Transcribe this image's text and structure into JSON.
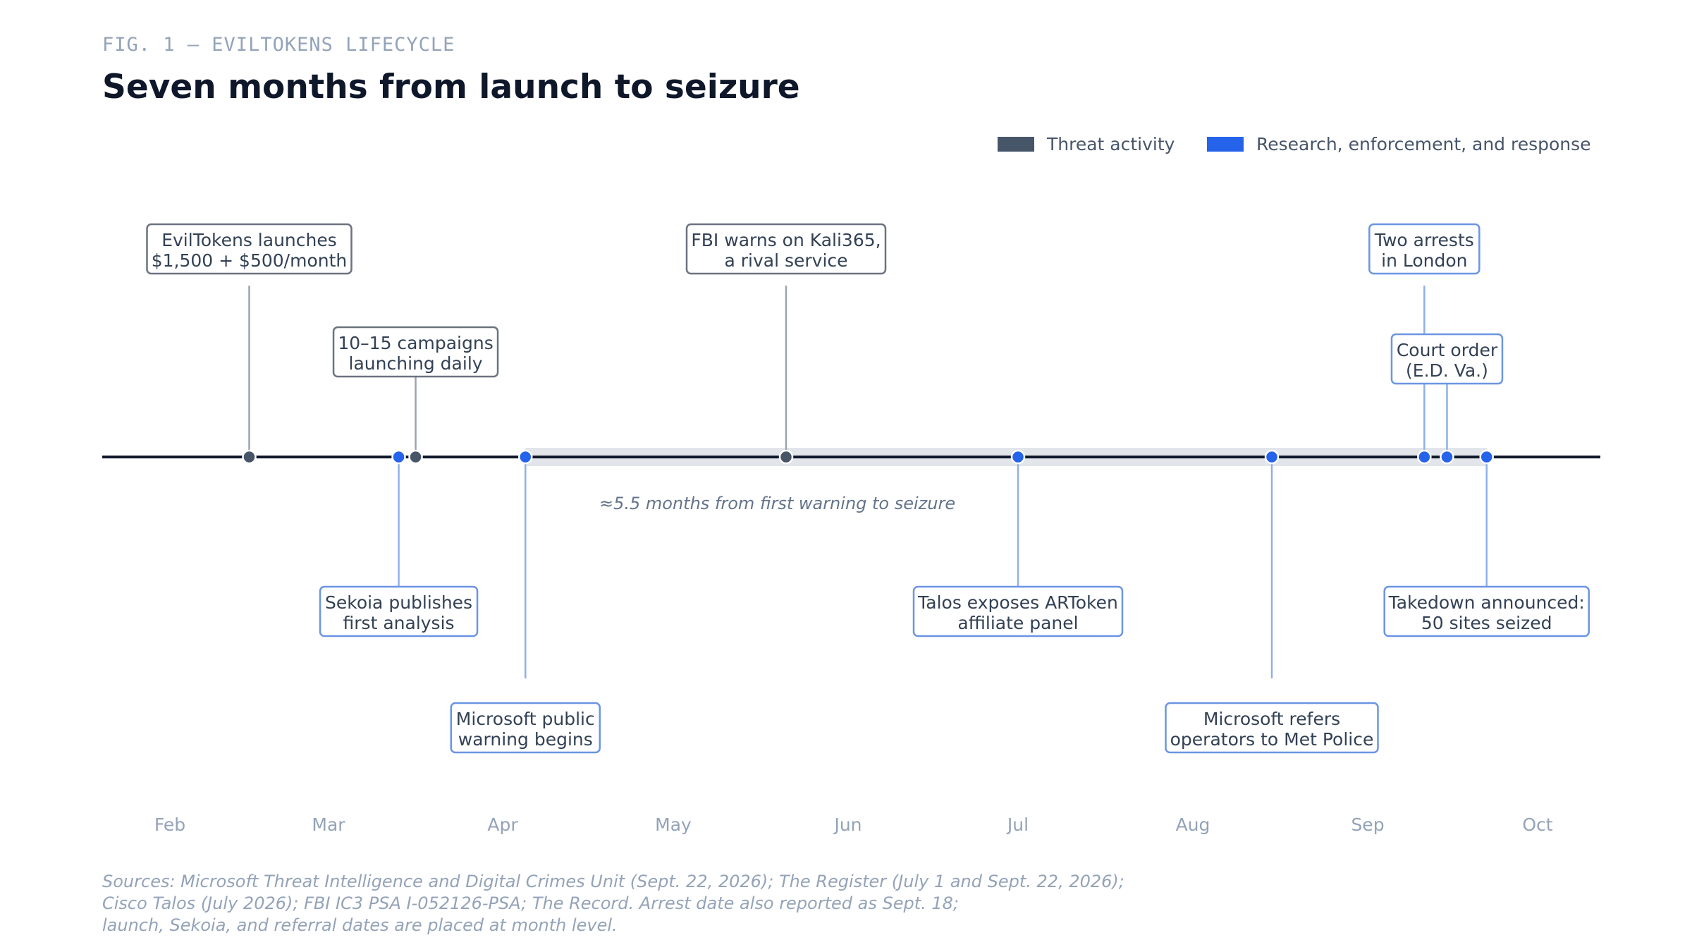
{
  "figure": {
    "kicker": "FIG. 1 — EVILTOKENS LIFECYCLE",
    "title": "Seven months from launch to seizure"
  },
  "legend": [
    {
      "label": "Threat activity",
      "color": "#475569"
    },
    {
      "label": "Research, enforcement, and response",
      "color": "#2563eb"
    }
  ],
  "colors": {
    "threat": "#475569",
    "threat_stem": "#9ca3af",
    "threat_border": "#6b7280",
    "research": "#2563eb",
    "research_stem": "#8fb0e8",
    "research_border": "#6b95e3",
    "axis": "#0f172a",
    "span": "#e2e5ea"
  },
  "timeline": {
    "months": [
      "Feb",
      "Mar",
      "Apr",
      "May",
      "Jun",
      "Jul",
      "Aug",
      "Sep",
      "Oct"
    ],
    "span_label": "≈5.5 months from first warning to seizure",
    "span_start": "Apr 5",
    "span_end": "Sep 22",
    "events": [
      {
        "date": "Feb 15",
        "category": "threat",
        "lines": [
          "EvilTokens launches",
          "$1,500 + $500/month"
        ]
      },
      {
        "date": "Mar 15",
        "category": "threat",
        "lines": [
          "10–15 campaigns",
          "launching daily"
        ]
      },
      {
        "date": "Mar 15",
        "category": "research",
        "lines": [
          "Sekoia publishes",
          "first analysis"
        ]
      },
      {
        "date": "Apr 5",
        "category": "research",
        "lines": [
          "Microsoft public",
          "warning begins"
        ]
      },
      {
        "date": "May 21",
        "category": "threat",
        "lines": [
          "FBI warns on Kali365,",
          "a rival service"
        ]
      },
      {
        "date": "Jul 1",
        "category": "research",
        "lines": [
          "Talos exposes ARToken",
          "affiliate panel"
        ]
      },
      {
        "date": "Aug 15",
        "category": "research",
        "lines": [
          "Microsoft refers",
          "operators to Met Police"
        ]
      },
      {
        "date": "Sep 11",
        "category": "research",
        "lines": [
          "Two arrests",
          "in London"
        ]
      },
      {
        "date": "Sep 15",
        "category": "research",
        "lines": [
          "Court order",
          "(E.D. Va.)"
        ]
      },
      {
        "date": "Sep 22",
        "category": "research",
        "lines": [
          "Takedown announced:",
          "50 sites seized"
        ]
      }
    ]
  },
  "sources": [
    "Sources: Microsoft Threat Intelligence and Digital Crimes Unit (Sept. 22, 2026); The Register (July 1 and Sept. 22, 2026);",
    "Cisco Talos (July 2026); FBI IC3 PSA I-052126-PSA; The Record. Arrest date also reported as Sept. 18;",
    "launch, Sekoia, and referral dates are placed at month level."
  ]
}
